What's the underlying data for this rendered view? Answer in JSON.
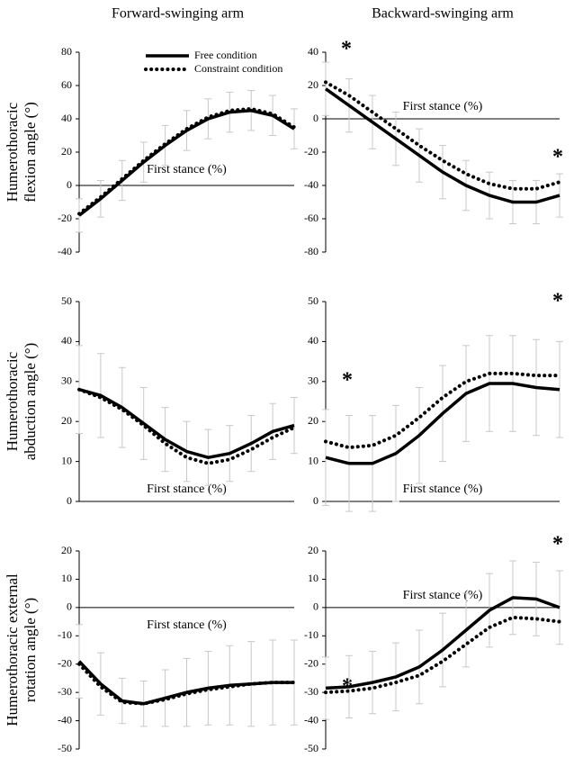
{
  "chart_data": [
    {
      "type": "line",
      "title": "Forward-swinging arm",
      "ylabel": [
        "Humerothoracic",
        "flexion angle (°)"
      ],
      "xlabel": "First stance (%)",
      "ylim": [
        -40,
        80
      ],
      "yticks": [
        -40,
        -20,
        0,
        20,
        40,
        60,
        80
      ],
      "series": [
        {
          "name": "Free condition",
          "color": "#000000",
          "linestyle": "solid",
          "values": [
            -18,
            -8,
            3,
            14,
            24,
            33,
            40,
            44,
            45,
            42,
            34
          ],
          "error": [
            10,
            11,
            12,
            12,
            12,
            12,
            12,
            12,
            12,
            12,
            12
          ]
        },
        {
          "name": "Constraint condition",
          "color": "#000000",
          "linestyle": "dotted",
          "values": [
            -17,
            -7,
            4,
            15,
            25,
            34,
            41,
            45,
            46,
            43,
            35
          ]
        }
      ]
    },
    {
      "type": "line",
      "title": "Backward-swinging arm",
      "xlabel": "First stance (%)",
      "annotations": [
        "*",
        "*"
      ],
      "ylim": [
        -80,
        40
      ],
      "yticks": [
        -80,
        -60,
        -40,
        -20,
        0,
        20,
        40
      ],
      "series": [
        {
          "color": "#000000",
          "linestyle": "solid",
          "values": [
            18,
            8,
            -2,
            -12,
            -22,
            -32,
            -40,
            -46,
            -50,
            -50,
            -46
          ],
          "error": [
            16,
            16,
            16,
            16,
            16,
            16,
            15,
            14,
            13,
            13,
            13
          ]
        },
        {
          "color": "#000000",
          "linestyle": "dotted",
          "values": [
            22,
            14,
            4,
            -6,
            -16,
            -25,
            -33,
            -39,
            -42,
            -42,
            -38
          ]
        }
      ]
    },
    {
      "type": "line",
      "ylabel": [
        "Humerothoracic",
        "abduction angle (°)"
      ],
      "xlabel": "First stance (%)",
      "ylim": [
        0,
        50
      ],
      "yticks": [
        0,
        10,
        20,
        30,
        40,
        50
      ],
      "series": [
        {
          "color": "#000000",
          "linestyle": "solid",
          "values": [
            28,
            26.5,
            23.5,
            19.5,
            15.5,
            12.5,
            11,
            12,
            14.5,
            17.5,
            19
          ],
          "error": [
            11,
            10.5,
            10,
            9,
            8,
            7.5,
            7,
            7,
            7,
            7,
            7
          ]
        },
        {
          "color": "#000000",
          "linestyle": "dotted",
          "values": [
            28,
            26,
            23,
            19,
            14.5,
            11,
            9.5,
            10.5,
            13,
            16,
            18.5
          ]
        }
      ]
    },
    {
      "type": "line",
      "xlabel": "First stance (%)",
      "annotations": [
        "*",
        "*"
      ],
      "ylim": [
        0,
        50
      ],
      "yticks": [
        0,
        10,
        20,
        30,
        40,
        50
      ],
      "series": [
        {
          "color": "#000000",
          "linestyle": "solid",
          "values": [
            11,
            9.5,
            9.5,
            12,
            16.5,
            22,
            27,
            29.5,
            29.5,
            28.5,
            28
          ],
          "error": [
            12,
            12,
            12,
            12,
            12,
            12,
            12,
            12,
            12,
            12,
            12
          ]
        },
        {
          "color": "#000000",
          "linestyle": "dotted",
          "values": [
            15,
            13.5,
            14,
            16.5,
            21,
            26,
            30,
            32,
            32,
            31.5,
            31.5
          ]
        }
      ]
    },
    {
      "type": "line",
      "ylabel": [
        "Humerothoracic external",
        "rotation angle (°)"
      ],
      "xlabel": "First stance (%)",
      "ylim": [
        -50,
        20
      ],
      "yticks": [
        -50,
        -40,
        -30,
        -20,
        -10,
        0,
        10,
        20
      ],
      "series": [
        {
          "color": "#000000",
          "linestyle": "solid",
          "values": [
            -19,
            -27,
            -33,
            -34,
            -32,
            -30,
            -28.5,
            -27.5,
            -27,
            -26.5,
            -26.5
          ],
          "error": [
            13,
            11,
            8,
            8,
            10,
            12,
            13,
            14,
            15,
            15,
            15
          ]
        },
        {
          "color": "#000000",
          "linestyle": "dotted",
          "values": [
            -20,
            -28,
            -33.5,
            -34,
            -32.5,
            -30.5,
            -29,
            -28,
            -27,
            -26.5,
            -26.5
          ]
        }
      ]
    },
    {
      "type": "line",
      "xlabel": "First stance (%)",
      "annotations": [
        "*",
        "*"
      ],
      "ylim": [
        -50,
        20
      ],
      "yticks": [
        -50,
        -40,
        -30,
        -20,
        -10,
        0,
        10,
        20
      ],
      "series": [
        {
          "color": "#000000",
          "linestyle": "solid",
          "values": [
            -28.5,
            -28,
            -26.5,
            -24.5,
            -21,
            -15,
            -8,
            -1,
            3.5,
            3,
            0
          ],
          "error": [
            11,
            11,
            11,
            12,
            13,
            13,
            13,
            13,
            13,
            13,
            13
          ]
        },
        {
          "color": "#000000",
          "linestyle": "dotted",
          "values": [
            -30,
            -29.5,
            -28.5,
            -26.5,
            -24,
            -19,
            -13,
            -7,
            -3.5,
            -4,
            -5
          ]
        }
      ]
    }
  ]
}
